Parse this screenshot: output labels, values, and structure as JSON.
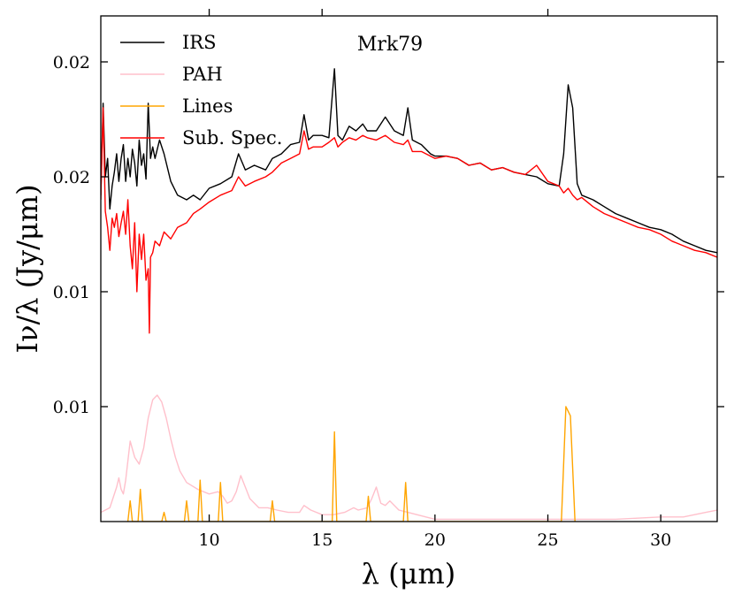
{
  "chart_data": {
    "type": "line",
    "title": "Mrk79",
    "xlabel": "λ (μm)",
    "ylabel": "Iν/λ (Jy/μm)",
    "xlim": [
      5.2,
      32.5
    ],
    "ylim": [
      0.0,
      0.022
    ],
    "xticks": [
      10,
      15,
      20,
      25,
      30
    ],
    "xtick_labels": [
      "10",
      "15",
      "20",
      "25",
      "30"
    ],
    "top_xticks": [
      10,
      15,
      25
    ],
    "yticks": [
      0.005,
      0.01,
      0.015,
      0.02
    ],
    "ytick_labels": [
      "0.01",
      "0.01",
      "0.02",
      "0.02"
    ],
    "legend": [
      "IRS",
      "PAH",
      "Lines",
      "Sub. Spec."
    ],
    "legend_position": "top-left",
    "series": [
      {
        "name": "IRS",
        "color": "#000000",
        "x": [
          5.2,
          5.3,
          5.4,
          5.5,
          5.6,
          5.7,
          5.8,
          5.9,
          6.0,
          6.1,
          6.2,
          6.3,
          6.4,
          6.5,
          6.6,
          6.7,
          6.8,
          6.9,
          7.0,
          7.1,
          7.2,
          7.3,
          7.4,
          7.5,
          7.6,
          7.8,
          8.0,
          8.3,
          8.6,
          9.0,
          9.3,
          9.6,
          10.0,
          10.5,
          11.0,
          11.3,
          11.6,
          12.0,
          12.5,
          12.8,
          13.2,
          13.6,
          14.0,
          14.2,
          14.4,
          14.6,
          15.0,
          15.3,
          15.55,
          15.7,
          15.9,
          16.2,
          16.5,
          16.8,
          17.0,
          17.4,
          17.8,
          18.2,
          18.6,
          18.8,
          19.0,
          19.4,
          19.8,
          20.0,
          20.5,
          21.0,
          21.5,
          22.0,
          22.5,
          23.0,
          23.5,
          24.0,
          24.5,
          25.0,
          25.5,
          25.7,
          25.9,
          26.1,
          26.3,
          26.5,
          27.0,
          27.5,
          28.0,
          28.5,
          29.0,
          29.5,
          30.0,
          30.5,
          31.0,
          31.5,
          32.0,
          32.5
        ],
        "values": [
          0.0142,
          0.0182,
          0.015,
          0.0158,
          0.0136,
          0.0146,
          0.0152,
          0.016,
          0.0148,
          0.0158,
          0.0164,
          0.0148,
          0.0158,
          0.015,
          0.0162,
          0.0156,
          0.0146,
          0.0166,
          0.0155,
          0.016,
          0.0149,
          0.0182,
          0.0158,
          0.0163,
          0.0158,
          0.0166,
          0.016,
          0.0148,
          0.0142,
          0.014,
          0.0142,
          0.014,
          0.0145,
          0.0147,
          0.015,
          0.016,
          0.0153,
          0.0155,
          0.0153,
          0.0158,
          0.016,
          0.0164,
          0.0165,
          0.0177,
          0.0166,
          0.0168,
          0.0168,
          0.0167,
          0.0197,
          0.0168,
          0.0166,
          0.0172,
          0.017,
          0.0173,
          0.017,
          0.017,
          0.0176,
          0.017,
          0.0168,
          0.018,
          0.0166,
          0.0164,
          0.016,
          0.0159,
          0.0159,
          0.0158,
          0.0155,
          0.0156,
          0.0153,
          0.0154,
          0.0152,
          0.0151,
          0.015,
          0.0147,
          0.0146,
          0.016,
          0.019,
          0.018,
          0.0147,
          0.0142,
          0.014,
          0.0137,
          0.0134,
          0.0132,
          0.013,
          0.0128,
          0.0127,
          0.0125,
          0.0122,
          0.012,
          0.0118,
          0.0117
        ]
      },
      {
        "name": "PAH",
        "color": "#ffc0cb",
        "x": [
          5.2,
          5.6,
          5.9,
          6.0,
          6.1,
          6.2,
          6.3,
          6.5,
          6.7,
          6.9,
          7.1,
          7.3,
          7.5,
          7.7,
          7.9,
          8.1,
          8.3,
          8.5,
          8.7,
          9.0,
          9.5,
          10.0,
          10.4,
          10.6,
          10.8,
          11.0,
          11.2,
          11.4,
          11.8,
          12.2,
          12.6,
          13.0,
          13.5,
          14.0,
          14.2,
          14.5,
          15.0,
          15.5,
          16.0,
          16.4,
          16.6,
          17.0,
          17.2,
          17.4,
          17.6,
          17.8,
          18.0,
          18.4,
          18.8,
          19.2,
          19.6,
          20.0,
          22.0,
          25.0,
          28.0,
          30.0,
          31.0,
          32.0,
          32.5
        ],
        "values": [
          0.0004,
          0.0006,
          0.0015,
          0.0019,
          0.0014,
          0.0012,
          0.0018,
          0.0035,
          0.0028,
          0.0025,
          0.0032,
          0.0045,
          0.0053,
          0.0055,
          0.0052,
          0.0045,
          0.0036,
          0.0028,
          0.0022,
          0.0017,
          0.0014,
          0.0012,
          0.0013,
          0.0011,
          0.0008,
          0.0009,
          0.0013,
          0.002,
          0.001,
          0.0006,
          0.0006,
          0.0005,
          0.0004,
          0.0004,
          0.0007,
          0.0005,
          0.0003,
          0.0003,
          0.0004,
          0.0006,
          0.0005,
          0.0006,
          0.001,
          0.0015,
          0.0008,
          0.0007,
          0.0009,
          0.0005,
          0.0004,
          0.0003,
          0.0002,
          0.0001,
          0.0001,
          0.0001,
          0.0001,
          0.0002,
          0.0002,
          0.0004,
          0.0005
        ]
      },
      {
        "name": "Lines",
        "color": "#ffa500",
        "x": [
          6.4,
          6.5,
          6.6,
          6.85,
          6.95,
          7.05,
          7.9,
          8.0,
          8.1,
          8.9,
          9.0,
          9.1,
          9.5,
          9.6,
          9.7,
          10.4,
          10.5,
          10.6,
          12.7,
          12.8,
          12.9,
          15.45,
          15.55,
          15.65,
          16.95,
          17.05,
          17.15,
          18.6,
          18.7,
          18.8,
          25.6,
          25.8,
          26.0,
          26.2
        ],
        "values": [
          0.0,
          0.0009,
          0.0,
          0.0,
          0.0014,
          0.0,
          0.0,
          0.0004,
          0.0,
          0.0,
          0.0009,
          0.0,
          0.0,
          0.0018,
          0.0,
          0.0,
          0.0017,
          0.0,
          0.0,
          0.0009,
          0.0,
          0.0,
          0.0039,
          0.0,
          0.0,
          0.0011,
          0.0,
          0.0,
          0.0017,
          0.0,
          0.0,
          0.005,
          0.0046,
          0.0
        ]
      },
      {
        "name": "Sub. Spec.",
        "color": "#ff0000",
        "x": [
          5.2,
          5.3,
          5.4,
          5.5,
          5.6,
          5.7,
          5.8,
          5.9,
          6.0,
          6.1,
          6.2,
          6.3,
          6.4,
          6.5,
          6.6,
          6.7,
          6.8,
          6.9,
          7.0,
          7.1,
          7.2,
          7.3,
          7.35,
          7.4,
          7.5,
          7.6,
          7.8,
          8.0,
          8.3,
          8.6,
          9.0,
          9.3,
          9.6,
          10.0,
          10.5,
          11.0,
          11.3,
          11.6,
          12.0,
          12.5,
          12.8,
          13.2,
          13.6,
          14.0,
          14.2,
          14.4,
          14.6,
          15.0,
          15.3,
          15.55,
          15.7,
          15.9,
          16.2,
          16.5,
          16.8,
          17.0,
          17.4,
          17.8,
          18.2,
          18.6,
          18.8,
          19.0,
          19.4,
          19.8,
          20.0,
          20.5,
          21.0,
          21.5,
          22.0,
          22.5,
          23.0,
          23.5,
          24.0,
          24.5,
          25.0,
          25.5,
          25.7,
          25.9,
          26.1,
          26.3,
          26.5,
          27.0,
          27.5,
          28.0,
          28.5,
          29.0,
          29.5,
          30.0,
          30.5,
          31.0,
          31.5,
          32.0,
          32.5
        ],
        "values": [
          0.014,
          0.018,
          0.0135,
          0.0128,
          0.0118,
          0.0132,
          0.0128,
          0.0134,
          0.0124,
          0.013,
          0.0135,
          0.0125,
          0.014,
          0.012,
          0.011,
          0.013,
          0.01,
          0.0125,
          0.0114,
          0.0125,
          0.0105,
          0.011,
          0.0082,
          0.0115,
          0.0117,
          0.0122,
          0.012,
          0.0126,
          0.0123,
          0.0128,
          0.013,
          0.0134,
          0.0136,
          0.0139,
          0.0142,
          0.0144,
          0.015,
          0.0146,
          0.0148,
          0.015,
          0.0152,
          0.0156,
          0.0158,
          0.016,
          0.017,
          0.0162,
          0.0163,
          0.0163,
          0.0165,
          0.0167,
          0.0163,
          0.0165,
          0.0167,
          0.0166,
          0.0168,
          0.0167,
          0.0166,
          0.0168,
          0.0165,
          0.0164,
          0.0166,
          0.0161,
          0.0161,
          0.0159,
          0.0158,
          0.0159,
          0.0158,
          0.0155,
          0.0156,
          0.0153,
          0.0154,
          0.0152,
          0.0151,
          0.0155,
          0.0148,
          0.0146,
          0.0143,
          0.0145,
          0.0142,
          0.014,
          0.0141,
          0.0137,
          0.0134,
          0.0132,
          0.013,
          0.0128,
          0.0127,
          0.0125,
          0.0122,
          0.012,
          0.0118,
          0.0117,
          0.0115
        ]
      }
    ]
  }
}
